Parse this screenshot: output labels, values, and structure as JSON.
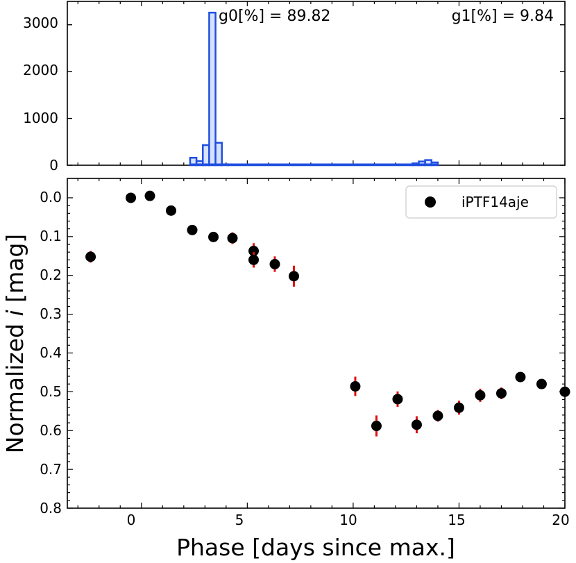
{
  "chart_data": [
    {
      "type": "histogram",
      "panel": "top",
      "xlim": [
        -3.5,
        20
      ],
      "ylim": [
        0,
        3500
      ],
      "yticks": [
        0,
        1000,
        2000,
        3000
      ],
      "ytick_labels": [
        "0",
        "1000",
        "2000",
        "3000"
      ],
      "annotations": {
        "g0": "g0[%] = 89.82",
        "g1": "g1[%] = 9.84"
      },
      "bins": [
        {
          "x0": 2.3,
          "x1": 2.6,
          "count": 160
        },
        {
          "x0": 2.6,
          "x1": 2.9,
          "count": 90
        },
        {
          "x0": 2.9,
          "x1": 3.2,
          "count": 430
        },
        {
          "x0": 3.2,
          "x1": 3.5,
          "count": 3260
        },
        {
          "x0": 3.5,
          "x1": 3.8,
          "count": 480
        },
        {
          "x0": 3.8,
          "x1": 4.1,
          "count": 20
        },
        {
          "x0": 4.1,
          "x1": 12.8,
          "count": 5
        },
        {
          "x0": 12.8,
          "x1": 13.1,
          "count": 40
        },
        {
          "x0": 13.1,
          "x1": 13.4,
          "count": 80
        },
        {
          "x0": 13.4,
          "x1": 13.7,
          "count": 110
        },
        {
          "x0": 13.7,
          "x1": 14.0,
          "count": 60
        }
      ]
    },
    {
      "type": "scatter",
      "panel": "bottom",
      "xlabel": "Phase [days since max.]",
      "ylabel_prefix": "Normalized ",
      "ylabel_italic": "i",
      "ylabel_suffix": " [mag]",
      "xlim": [
        -3.5,
        20
      ],
      "ylim": [
        0.8,
        -0.05
      ],
      "xticks": [
        0,
        5,
        10,
        15,
        20
      ],
      "xtick_labels": [
        "0",
        "5",
        "10",
        "15",
        "20"
      ],
      "yticks": [
        0.0,
        0.1,
        0.2,
        0.3,
        0.4,
        0.5,
        0.6,
        0.7,
        0.8
      ],
      "ytick_labels": [
        "0.0",
        "0.1",
        "0.2",
        "0.3",
        "0.4",
        "0.5",
        "0.6",
        "0.7",
        "0.8"
      ],
      "legend": "iPTF14aje",
      "series": [
        {
          "name": "iPTF14aje",
          "points": [
            {
              "x": -2.4,
              "y": 0.152,
              "err": 0.015
            },
            {
              "x": -0.5,
              "y": 0.0,
              "err": 0.008
            },
            {
              "x": 0.4,
              "y": -0.005,
              "err": 0.008
            },
            {
              "x": 1.4,
              "y": 0.033,
              "err": 0.008
            },
            {
              "x": 2.4,
              "y": 0.083,
              "err": 0.01
            },
            {
              "x": 3.4,
              "y": 0.101,
              "err": 0.01
            },
            {
              "x": 4.3,
              "y": 0.104,
              "err": 0.015
            },
            {
              "x": 5.3,
              "y": 0.137,
              "err": 0.02
            },
            {
              "x": 5.3,
              "y": 0.16,
              "err": 0.02
            },
            {
              "x": 6.3,
              "y": 0.171,
              "err": 0.02
            },
            {
              "x": 7.2,
              "y": 0.202,
              "err": 0.027
            },
            {
              "x": 10.1,
              "y": 0.486,
              "err": 0.025
            },
            {
              "x": 11.1,
              "y": 0.588,
              "err": 0.027
            },
            {
              "x": 12.1,
              "y": 0.519,
              "err": 0.02
            },
            {
              "x": 13.0,
              "y": 0.585,
              "err": 0.022
            },
            {
              "x": 14.0,
              "y": 0.562,
              "err": 0.015
            },
            {
              "x": 15.0,
              "y": 0.541,
              "err": 0.018
            },
            {
              "x": 16.0,
              "y": 0.509,
              "err": 0.017
            },
            {
              "x": 17.0,
              "y": 0.504,
              "err": 0.015
            },
            {
              "x": 17.9,
              "y": 0.462,
              "err": 0.008
            },
            {
              "x": 18.9,
              "y": 0.48,
              "err": 0.008
            },
            {
              "x": 20.0,
              "y": 0.5,
              "err": 0.008
            }
          ]
        }
      ]
    }
  ],
  "colors": {
    "hist": "#1f4fe0",
    "marker": "#000000",
    "error": "#e01010"
  }
}
